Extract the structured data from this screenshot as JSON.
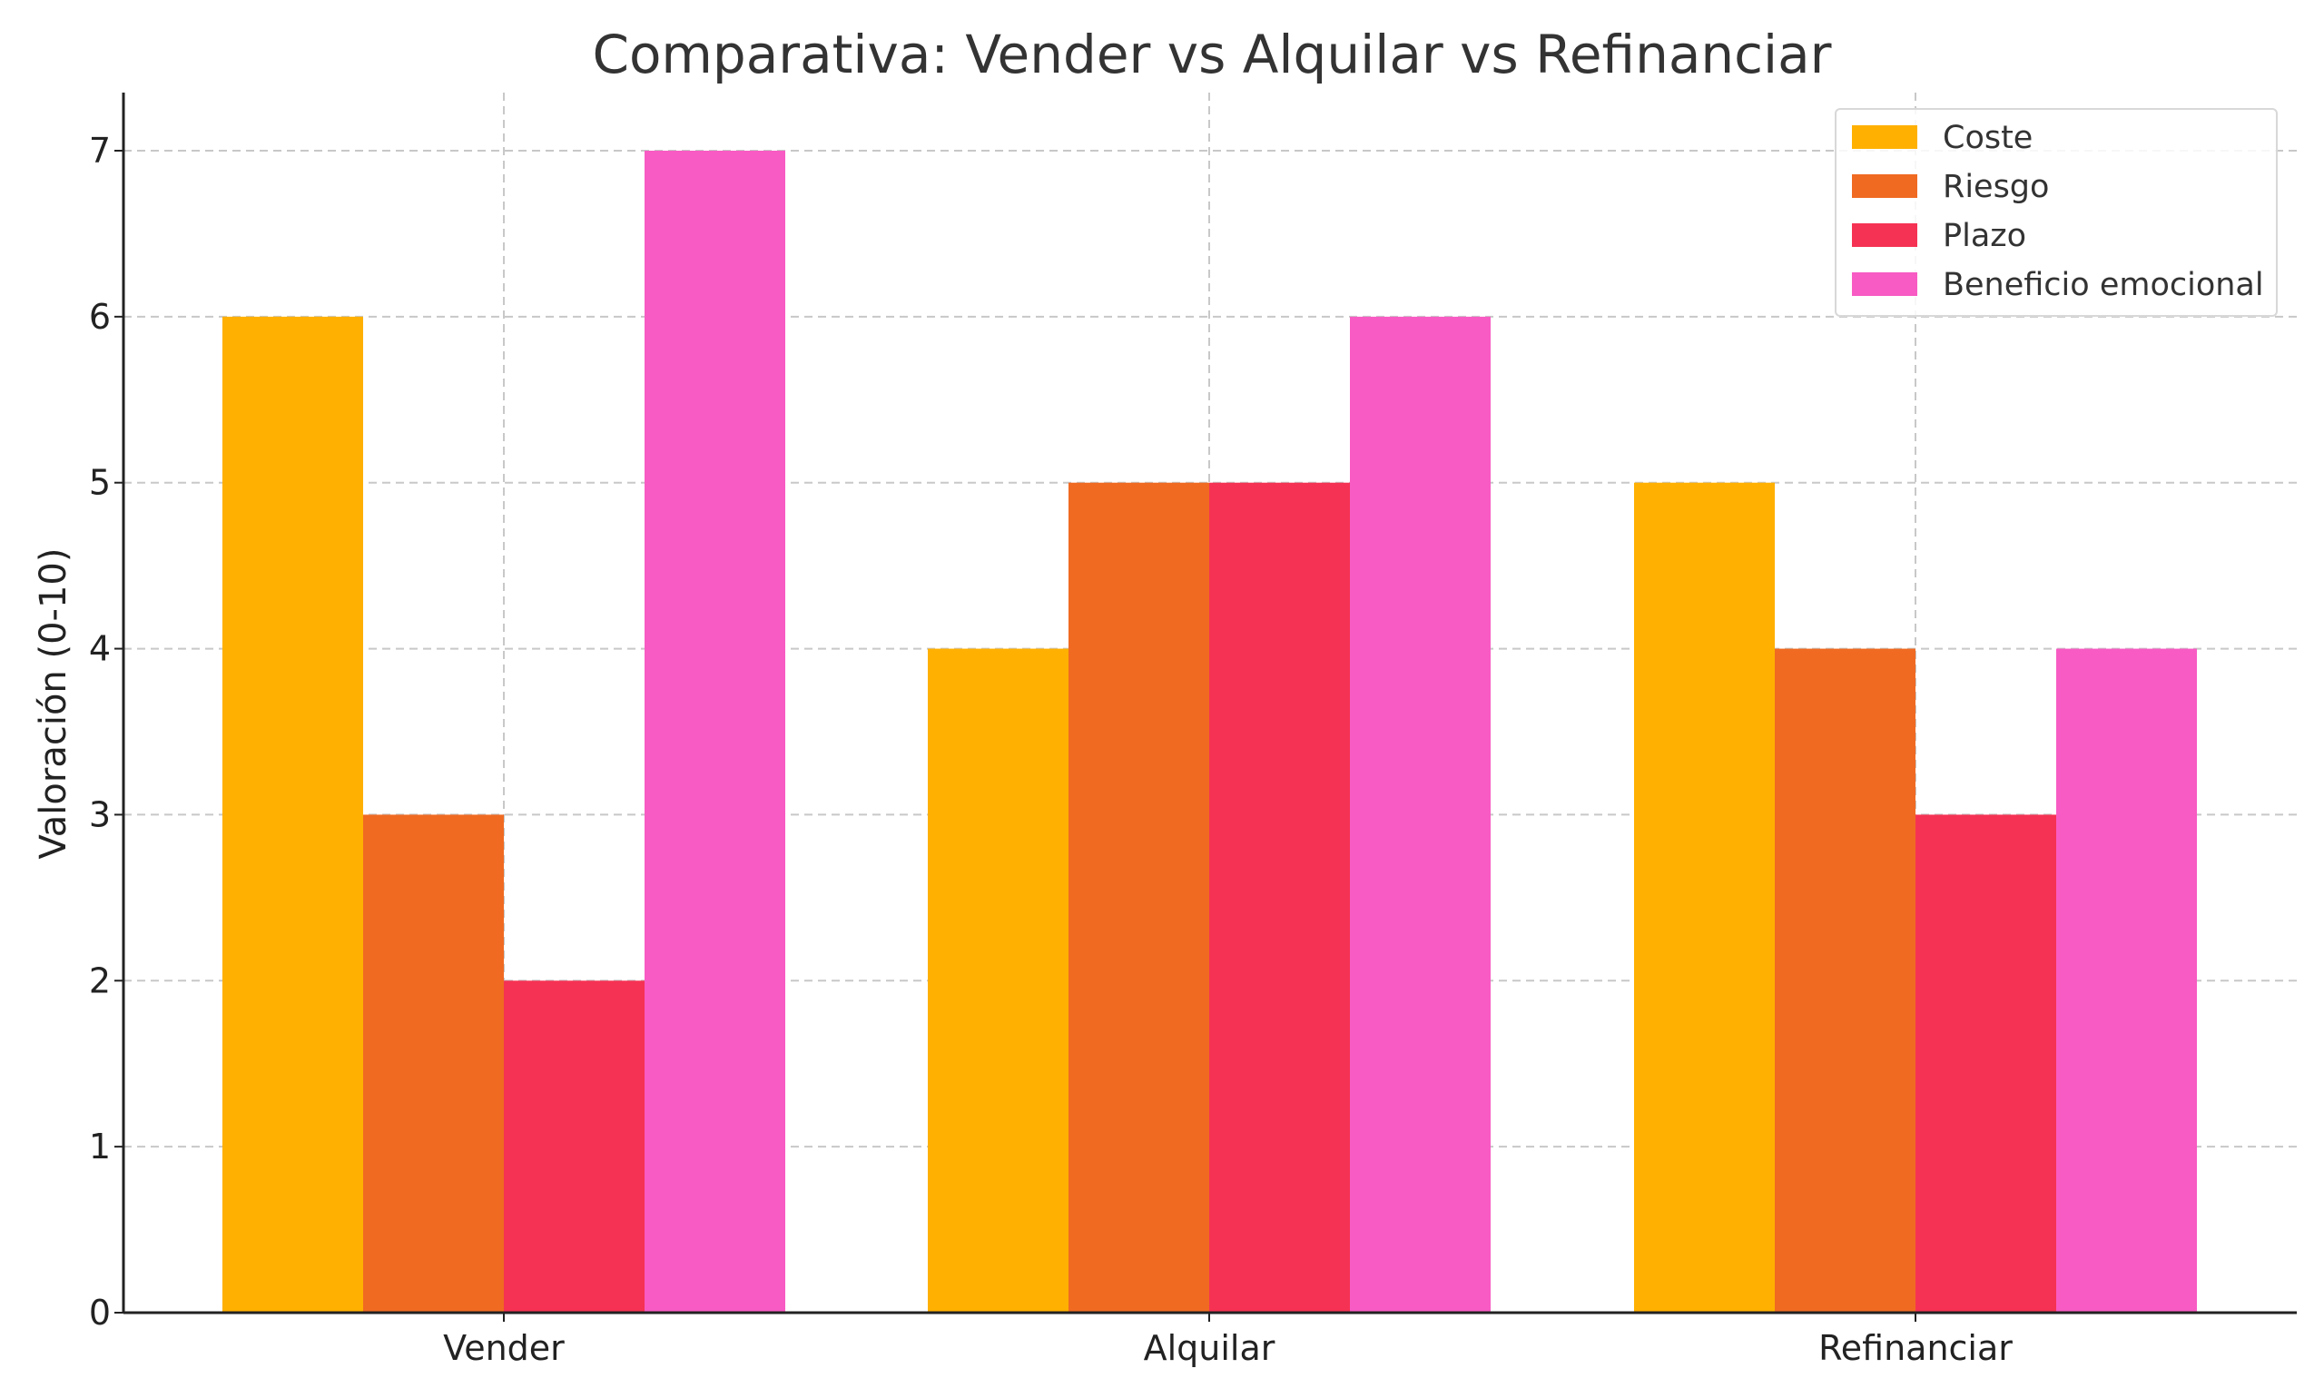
{
  "chart_data": {
    "type": "bar",
    "title": "Comparativa: Vender vs Alquilar vs Refinanciar",
    "xlabel": "",
    "ylabel": "Valoración (0-10)",
    "categories": [
      "Vender",
      "Alquilar",
      "Refinanciar"
    ],
    "series": [
      {
        "name": "Coste",
        "values": [
          6,
          4,
          5
        ],
        "color": "#FFB000"
      },
      {
        "name": "Riesgo",
        "values": [
          3,
          5,
          4
        ],
        "color": "#F06A22"
      },
      {
        "name": "Plazo",
        "values": [
          2,
          5,
          3
        ],
        "color": "#F53253"
      },
      {
        "name": "Beneficio emocional",
        "values": [
          7,
          6,
          4
        ],
        "color": "#F85BC3"
      }
    ],
    "ylim": [
      0,
      7.35
    ],
    "yticks": [
      0,
      1,
      2,
      3,
      4,
      5,
      6,
      7
    ],
    "grid": true,
    "legend_position": "top-right"
  }
}
